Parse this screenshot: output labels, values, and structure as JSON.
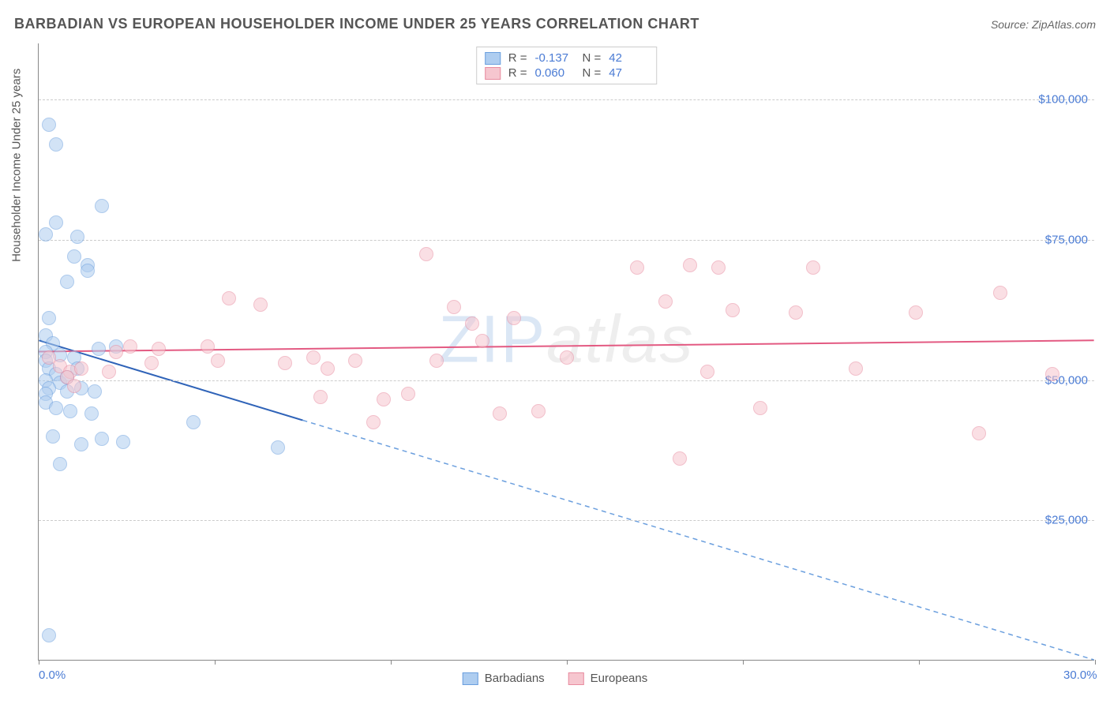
{
  "title": "BARBADIAN VS EUROPEAN HOUSEHOLDER INCOME UNDER 25 YEARS CORRELATION CHART",
  "source": "Source: ZipAtlas.com",
  "watermark": {
    "part1": "ZIP",
    "part2": "atlas"
  },
  "chart": {
    "type": "scatter",
    "background_color": "#ffffff",
    "grid_color": "#cccccc",
    "axis_color": "#888888",
    "text_color": "#555555",
    "value_color": "#4a7bd4",
    "y_axis_title": "Householder Income Under 25 years",
    "xlim": [
      0,
      30
    ],
    "ylim": [
      0,
      110000
    ],
    "x_ticks": [
      0,
      5,
      10,
      15,
      20,
      25,
      30
    ],
    "x_tick_labels": {
      "0": "0.0%",
      "30": "30.0%"
    },
    "y_gridlines": [
      25000,
      50000,
      75000,
      100000
    ],
    "y_labels": {
      "25000": "$25,000",
      "50000": "$50,000",
      "75000": "$75,000",
      "100000": "$100,000"
    },
    "marker_radius": 8,
    "marker_opacity": 0.55,
    "series": [
      {
        "name": "Barbadians",
        "color_fill": "#aecdf0",
        "color_stroke": "#6b9fde",
        "R": "-0.137",
        "N": "42",
        "trend": {
          "x1": 0,
          "y1": 57000,
          "x2": 30,
          "y2": 0,
          "solid_until_x": 7.5,
          "color": "#2f63b8",
          "width": 2
        },
        "points": [
          [
            0.3,
            95500
          ],
          [
            0.5,
            92000
          ],
          [
            0.2,
            76000
          ],
          [
            1.1,
            75500
          ],
          [
            1.8,
            81000
          ],
          [
            1.0,
            72000
          ],
          [
            1.4,
            70500
          ],
          [
            1.4,
            69500
          ],
          [
            0.8,
            67500
          ],
          [
            0.3,
            61000
          ],
          [
            0.2,
            58000
          ],
          [
            0.4,
            56500
          ],
          [
            0.2,
            55000
          ],
          [
            0.6,
            54500
          ],
          [
            0.2,
            53500
          ],
          [
            0.3,
            52000
          ],
          [
            0.5,
            51000
          ],
          [
            0.2,
            50000
          ],
          [
            0.6,
            49500
          ],
          [
            0.3,
            48500
          ],
          [
            0.2,
            47500
          ],
          [
            0.8,
            48000
          ],
          [
            1.2,
            48500
          ],
          [
            1.6,
            48000
          ],
          [
            0.2,
            46000
          ],
          [
            0.5,
            45000
          ],
          [
            0.9,
            44500
          ],
          [
            1.5,
            44000
          ],
          [
            0.4,
            40000
          ],
          [
            1.8,
            39500
          ],
          [
            2.4,
            39000
          ],
          [
            4.4,
            42500
          ],
          [
            1.2,
            38500
          ],
          [
            6.8,
            38000
          ],
          [
            0.6,
            35000
          ],
          [
            0.3,
            4500
          ],
          [
            2.2,
            56000
          ],
          [
            1.0,
            54000
          ],
          [
            0.8,
            50500
          ],
          [
            0.5,
            78000
          ],
          [
            1.7,
            55500
          ],
          [
            1.1,
            52000
          ]
        ]
      },
      {
        "name": "Europeans",
        "color_fill": "#f6c6cf",
        "color_stroke": "#e88ca0",
        "R": "0.060",
        "N": "47",
        "trend": {
          "x1": 0,
          "y1": 55000,
          "x2": 30,
          "y2": 57000,
          "color": "#e35a82",
          "width": 2
        },
        "points": [
          [
            0.3,
            54000
          ],
          [
            0.6,
            52500
          ],
          [
            0.9,
            51500
          ],
          [
            0.8,
            50500
          ],
          [
            1.2,
            52000
          ],
          [
            1.0,
            49000
          ],
          [
            2.2,
            55000
          ],
          [
            2.0,
            51500
          ],
          [
            2.6,
            56000
          ],
          [
            3.4,
            55500
          ],
          [
            3.2,
            53000
          ],
          [
            4.8,
            56000
          ],
          [
            5.1,
            53500
          ],
          [
            5.4,
            64500
          ],
          [
            6.3,
            63500
          ],
          [
            7.0,
            53000
          ],
          [
            7.8,
            54000
          ],
          [
            8.2,
            52000
          ],
          [
            8.0,
            47000
          ],
          [
            9.8,
            46500
          ],
          [
            9.5,
            42500
          ],
          [
            9.0,
            53500
          ],
          [
            11.0,
            72500
          ],
          [
            11.3,
            53500
          ],
          [
            10.5,
            47500
          ],
          [
            11.8,
            63000
          ],
          [
            12.3,
            60000
          ],
          [
            12.6,
            57000
          ],
          [
            13.1,
            44000
          ],
          [
            14.2,
            44500
          ],
          [
            13.5,
            61000
          ],
          [
            15.0,
            54000
          ],
          [
            17.0,
            70000
          ],
          [
            17.8,
            64000
          ],
          [
            18.5,
            70500
          ],
          [
            19.3,
            70000
          ],
          [
            19.7,
            62500
          ],
          [
            19.0,
            51500
          ],
          [
            20.5,
            45000
          ],
          [
            22.0,
            70000
          ],
          [
            21.5,
            62000
          ],
          [
            23.2,
            52000
          ],
          [
            24.9,
            62000
          ],
          [
            27.3,
            65500
          ],
          [
            26.7,
            40500
          ],
          [
            28.8,
            51000
          ],
          [
            18.2,
            36000
          ]
        ]
      }
    ],
    "bottom_legend": [
      {
        "label": "Barbadians",
        "fill": "#aecdf0",
        "stroke": "#6b9fde"
      },
      {
        "label": "Europeans",
        "fill": "#f6c6cf",
        "stroke": "#e88ca0"
      }
    ]
  }
}
